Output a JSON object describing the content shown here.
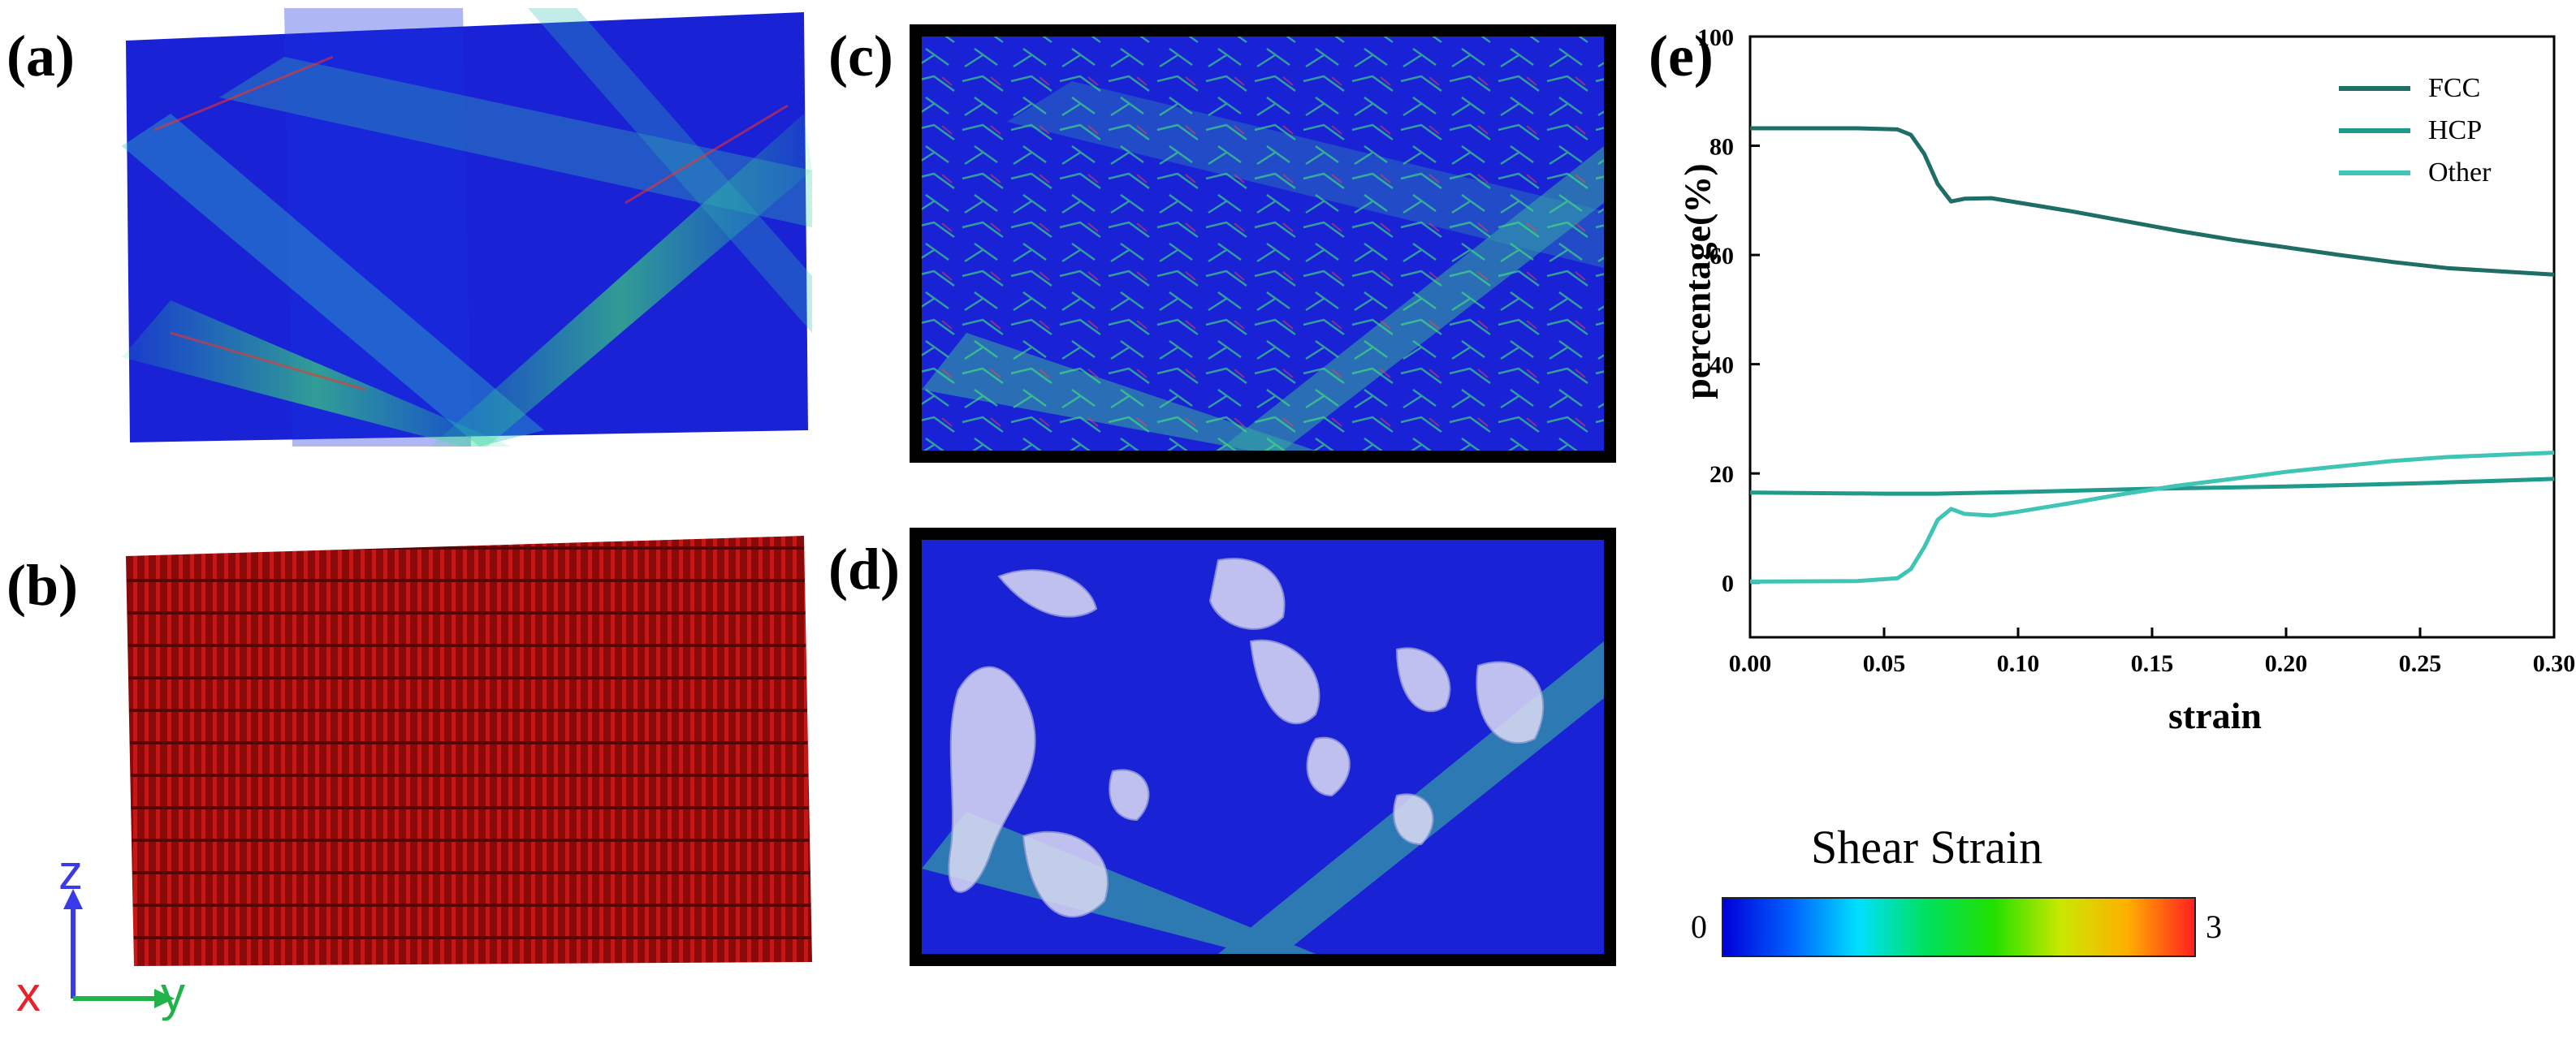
{
  "panel_labels": {
    "a": "(a)",
    "b": "(b)",
    "c": "(c)",
    "d": "(d)",
    "e": "(e)"
  },
  "axes_indicator": {
    "z": "z",
    "x": "x",
    "y": "y",
    "colors": {
      "z": "#3a3ae8",
      "x": "#e8222a",
      "y": "#22b24a"
    }
  },
  "colorbar": {
    "title": "Shear Strain",
    "min_label": "0",
    "max_label": "3",
    "stops": [
      "#0000d8",
      "#0060ff",
      "#00e0ff",
      "#00e060",
      "#20e000",
      "#c8e800",
      "#ffb000",
      "#ff2020"
    ]
  },
  "colors": {
    "fcc": "#1e6e66",
    "hcp": "#1f9a8c",
    "other": "#3fc4b6",
    "sim_blue": "#1a22d6",
    "defect_red": "#b01010"
  },
  "chart_data": {
    "type": "line",
    "xlabel": "strain",
    "ylabel": "percentage(%)",
    "xlim": [
      0,
      0.3
    ],
    "ylim": [
      -10,
      100
    ],
    "xticks": [
      "0.00",
      "0.05",
      "0.10",
      "0.15",
      "0.20",
      "0.25",
      "0.30"
    ],
    "yticks": [
      "0",
      "20",
      "40",
      "60",
      "80",
      "100"
    ],
    "legend_position": "top-right",
    "grid": false,
    "series": [
      {
        "name": "FCC",
        "x": [
          0,
          0.02,
          0.04,
          0.055,
          0.06,
          0.065,
          0.07,
          0.075,
          0.08,
          0.09,
          0.1,
          0.12,
          0.14,
          0.16,
          0.18,
          0.2,
          0.22,
          0.24,
          0.26,
          0.28,
          0.3
        ],
        "y": [
          83.2,
          83.2,
          83.2,
          83.0,
          82.0,
          78.5,
          73.0,
          69.8,
          70.3,
          70.4,
          69.6,
          68.0,
          66.2,
          64.4,
          62.8,
          61.4,
          60.0,
          58.7,
          57.6,
          57.0,
          56.4
        ]
      },
      {
        "name": "HCP",
        "x": [
          0,
          0.05,
          0.07,
          0.1,
          0.15,
          0.2,
          0.25,
          0.3
        ],
        "y": [
          16.5,
          16.3,
          16.3,
          16.6,
          17.2,
          17.6,
          18.2,
          19.0
        ]
      },
      {
        "name": "Other",
        "x": [
          0,
          0.04,
          0.055,
          0.06,
          0.065,
          0.07,
          0.075,
          0.08,
          0.09,
          0.1,
          0.12,
          0.14,
          0.16,
          0.18,
          0.2,
          0.22,
          0.24,
          0.26,
          0.28,
          0.3
        ],
        "y": [
          0.2,
          0.3,
          0.8,
          2.5,
          6.5,
          11.5,
          13.5,
          12.6,
          12.3,
          13.0,
          14.6,
          16.3,
          17.8,
          19.0,
          20.3,
          21.3,
          22.3,
          23.0,
          23.4,
          23.8
        ]
      }
    ]
  }
}
